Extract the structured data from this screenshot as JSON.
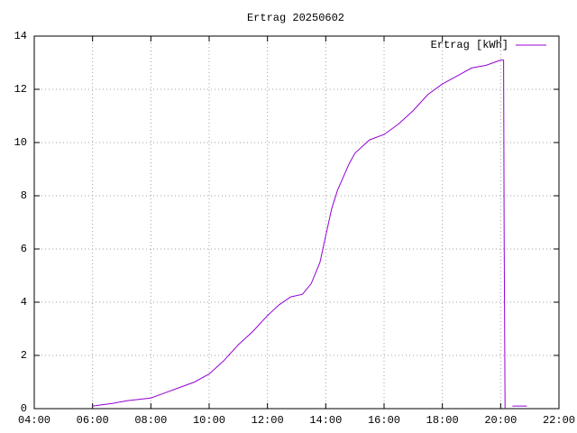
{
  "chart_data": {
    "type": "line",
    "title": "Ertrag 20250602",
    "x": [
      6.0,
      6.7,
      7.2,
      8.0,
      8.5,
      9.0,
      9.5,
      10.0,
      10.5,
      11.0,
      11.5,
      12.0,
      12.4,
      12.8,
      13.2,
      13.5,
      13.8,
      14.0,
      14.2,
      14.4,
      14.8,
      15.0,
      15.5,
      16.0,
      16.5,
      17.0,
      17.5,
      18.0,
      18.5,
      19.0,
      19.5,
      20.0,
      20.1,
      20.12,
      20.15,
      20.3,
      20.4,
      20.9
    ],
    "series": [
      {
        "name": "Ertrag [kWh]",
        "color": "#9400d3",
        "values": [
          0.1,
          0.2,
          0.3,
          0.4,
          0.6,
          0.8,
          1.0,
          1.3,
          1.8,
          2.4,
          2.9,
          3.5,
          3.9,
          4.2,
          4.3,
          4.7,
          5.5,
          6.5,
          7.5,
          8.2,
          9.2,
          9.6,
          10.1,
          10.3,
          10.7,
          11.2,
          11.8,
          12.2,
          12.5,
          12.8,
          12.9,
          13.1,
          13.1,
          6.5,
          0,
          null,
          0.1,
          0.1
        ]
      }
    ],
    "xlim": [
      4,
      22
    ],
    "xticks": [
      {
        "value": 4,
        "label": "04:00"
      },
      {
        "value": 6,
        "label": "06:00"
      },
      {
        "value": 8,
        "label": "08:00"
      },
      {
        "value": 10,
        "label": "10:00"
      },
      {
        "value": 12,
        "label": "12:00"
      },
      {
        "value": 14,
        "label": "14:00"
      },
      {
        "value": 16,
        "label": "16:00"
      },
      {
        "value": 18,
        "label": "18:00"
      },
      {
        "value": 20,
        "label": "20:00"
      },
      {
        "value": 22,
        "label": "22:00"
      }
    ],
    "ylim": [
      0,
      14
    ],
    "yticks": [
      0,
      2,
      4,
      6,
      8,
      10,
      12,
      14
    ],
    "grid": true,
    "legend": "top-right"
  }
}
